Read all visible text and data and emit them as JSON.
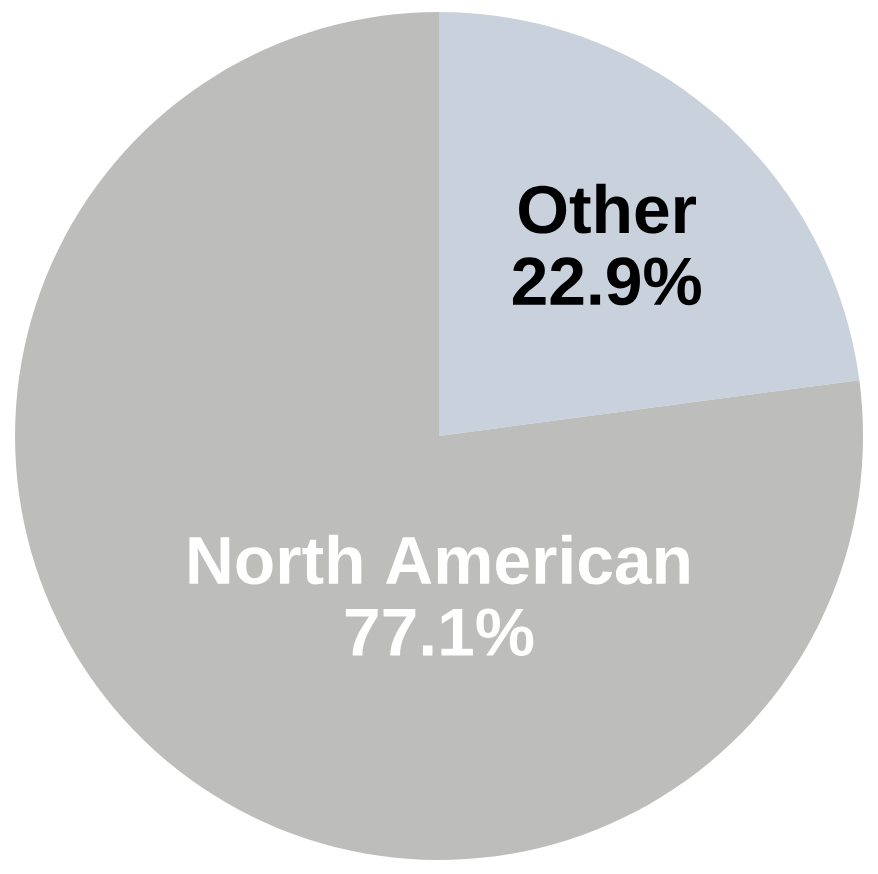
{
  "chart_data": {
    "type": "pie",
    "categories": [
      "Other",
      "North American"
    ],
    "values": [
      22.9,
      77.1
    ],
    "value_labels": [
      "22.9%",
      "77.1%"
    ],
    "colors": [
      "#c9d1dd",
      "#bdbdbb"
    ]
  }
}
